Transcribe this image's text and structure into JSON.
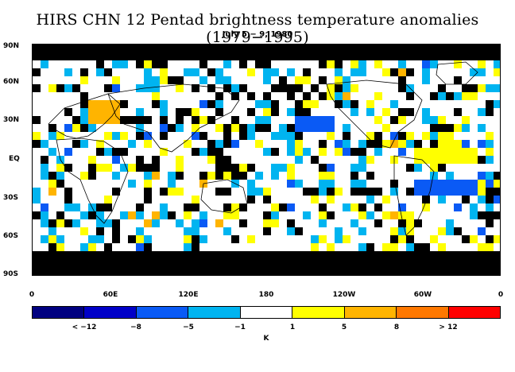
{
  "figure": {
    "title": "HIRS CHN 12 Pentad brightness temperature anomalies (1979−1995)",
    "subtitle": "July 5 − 9, 1980",
    "lat_labels": [
      "90N",
      "60N",
      "30N",
      "EQ",
      "30S",
      "60S",
      "90S"
    ],
    "lon_labels": [
      "0",
      "60E",
      "120E",
      "180",
      "120W",
      "60W",
      "0"
    ],
    "colorbar": {
      "labels": [
        "< −12",
        "−8",
        "−5",
        "−1",
        "1",
        "5",
        "8",
        "> 12"
      ],
      "colors": [
        "#000080",
        "#0000c8",
        "#0a5af5",
        "#00b4f0",
        "#ffffff",
        "#ffff00",
        "#ffb400",
        "#ff7800",
        "#ff0000"
      ],
      "unit": "K"
    }
  },
  "chart_data": {
    "type": "heatmap",
    "title": "HIRS CHN 12 Pentad brightness temperature anomalies (1979−1995)",
    "subtitle": "July 5 − 9, 1980",
    "x_ticks": [
      "0",
      "60E",
      "120E",
      "180",
      "120W",
      "60W",
      "0"
    ],
    "y_ticks": [
      "90N",
      "60N",
      "30N",
      "EQ",
      "30S",
      "60S",
      "90S"
    ],
    "xlim": [
      0,
      360
    ],
    "ylim": [
      -90,
      90
    ],
    "color_bins": [
      "< −12",
      "−12 to −8",
      "−8 to −5",
      "−5 to −1",
      "−1 to 1",
      "1 to 5",
      "5 to 8",
      "8 to 12",
      "> 12"
    ],
    "colorbar_unit": "K",
    "missing_data_color": "#000000",
    "regions": [
      {
        "label": "warm anomaly over Caspian/Central Asia",
        "lon_range": [
          45,
          65
        ],
        "lat_range": [
          30,
          45
        ],
        "bin": "5 to 8"
      },
      {
        "label": "cold anomaly north-central Pacific",
        "lon_range": [
          200,
          230
        ],
        "lat_range": [
          20,
          35
        ],
        "bin": "−8 to −5"
      },
      {
        "label": "cold anomaly southern Atlantic/S. America",
        "lon_range": [
          290,
          340
        ],
        "lat_range": [
          -30,
          -15
        ],
        "bin": "−8 to −5"
      },
      {
        "label": "warm anomaly tropical Atlantic",
        "lon_range": [
          290,
          340
        ],
        "lat_range": [
          -5,
          10
        ],
        "bin": "1 to 5"
      },
      {
        "label": "missing data Southern Ocean band",
        "lon_range": [
          0,
          360
        ],
        "lat_range": [
          -90,
          -68
        ],
        "bin": "missing"
      },
      {
        "label": "missing data Arctic band",
        "lon_range": [
          0,
          360
        ],
        "lat_range": [
          75,
          90
        ],
        "bin": "missing"
      }
    ]
  }
}
